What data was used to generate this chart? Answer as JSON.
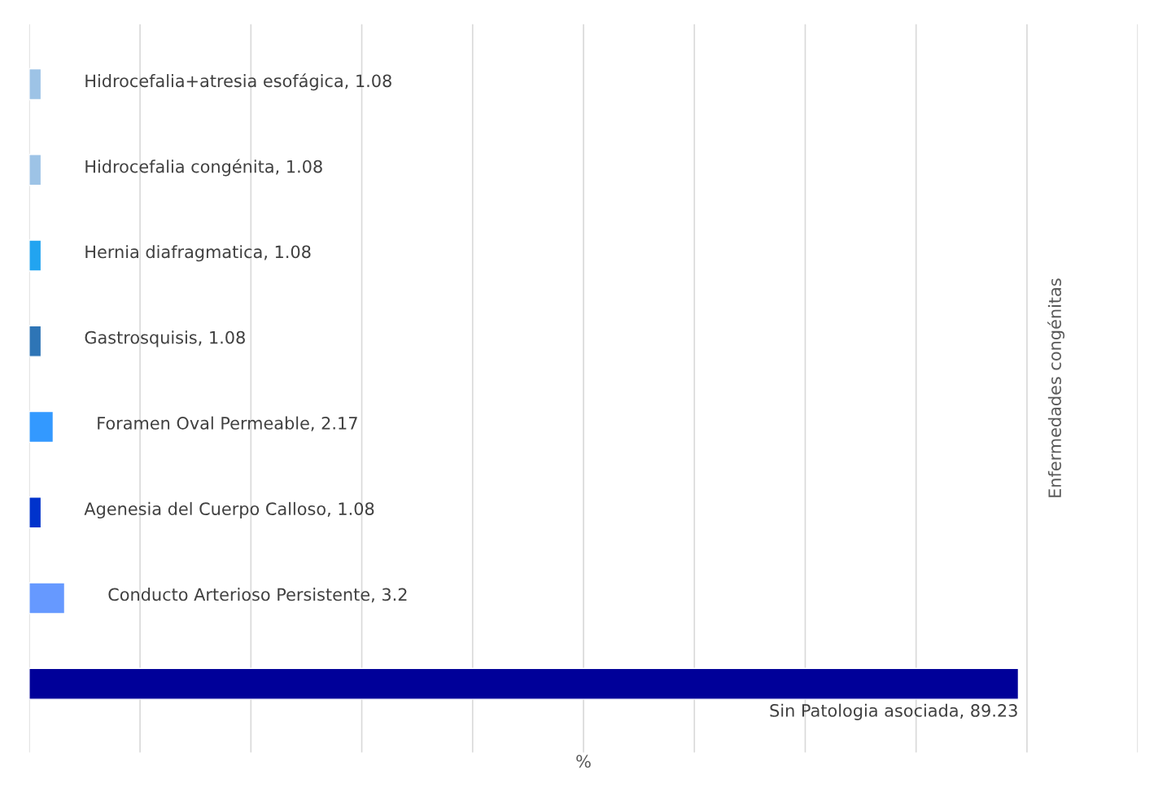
{
  "chart_data": {
    "type": "bar",
    "orientation": "horizontal",
    "categories": [
      null,
      null,
      null,
      null,
      null,
      null,
      null,
      null
    ],
    "values": [
      1.08,
      1.08,
      1.08,
      1.08,
      2.17,
      1.08,
      3.2,
      89.23
    ],
    "colors": [
      "#9dc3e6",
      "#9dc3e6",
      "#22a4f0",
      "#2e75b6",
      "#3399ff",
      "#0033cc",
      "#6699ff",
      "#000099"
    ],
    "value_labels": [
      "Hidrocefalia+atresia esofágica, 1.08",
      "Hidrocefalia congénita, 1.08",
      "Hernia diafragmatica, 1.08",
      "Gastrosquisis, 1.08",
      "Foramen Oval Permeable, 2.17",
      "Agenesia del Cuerpo Calloso, 1.08",
      "Conducto Arterioso Persistente, 3.2",
      "Sin Patologia asociada, 89.23"
    ],
    "xlabel": "%",
    "ylabel": "Enfermedades congénitas",
    "xlim": [
      0,
      100
    ],
    "xticks": [
      {
        "value": 0,
        "label": null
      },
      {
        "value": 10,
        "label": null
      },
      {
        "value": 20,
        "label": null
      },
      {
        "value": 30,
        "label": null
      },
      {
        "value": 40,
        "label": null
      },
      {
        "value": 50,
        "label": null
      },
      {
        "value": 60,
        "label": null
      },
      {
        "value": 70,
        "label": null
      },
      {
        "value": 80,
        "label": null
      },
      {
        "value": 90,
        "label": null
      },
      {
        "value": 100,
        "label": null
      }
    ],
    "tick_labels": false,
    "grid": "x"
  }
}
